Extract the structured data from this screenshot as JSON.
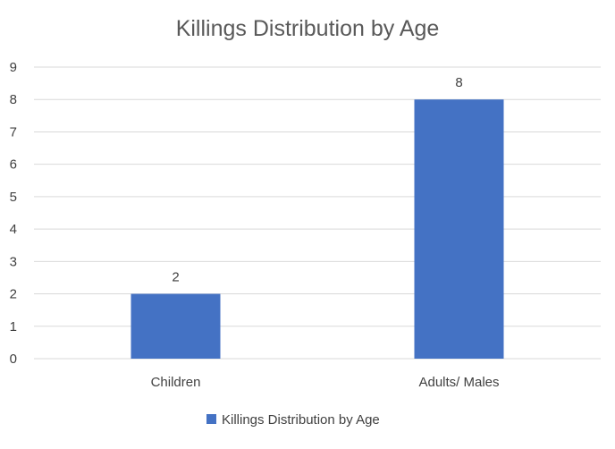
{
  "chart_data": {
    "type": "bar",
    "title": "Killings Distribution by Age",
    "categories": [
      "Children",
      "Adults/ Males"
    ],
    "series": [
      {
        "name": "Killings Distribution by Age",
        "values": [
          2,
          8
        ],
        "color": "#4472C4"
      }
    ],
    "ylim": [
      0,
      9
    ],
    "yticks": [
      0,
      1,
      2,
      3,
      4,
      5,
      6,
      7,
      8,
      9
    ],
    "grid": true,
    "legend_position": "bottom",
    "data_labels": true
  }
}
